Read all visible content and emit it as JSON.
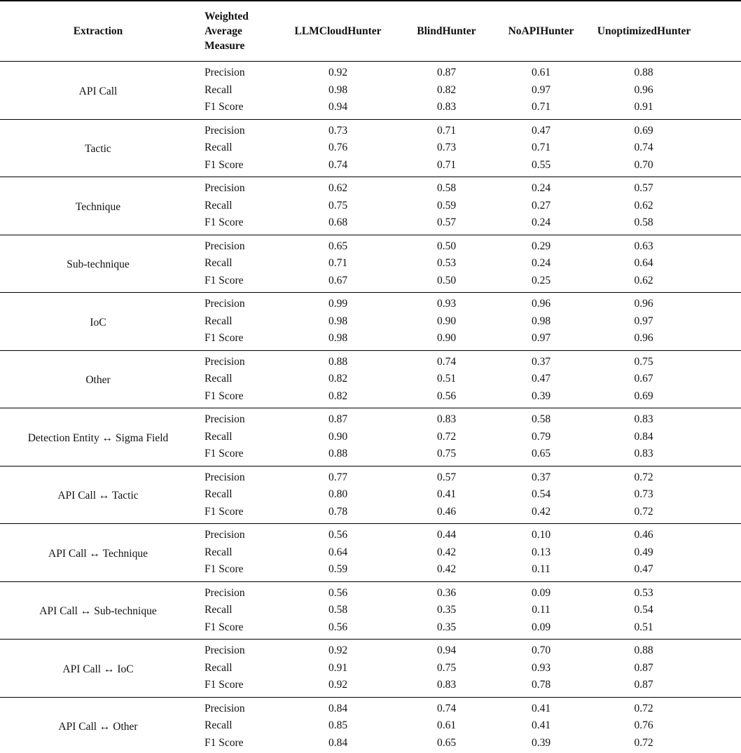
{
  "table": {
    "columns": [
      {
        "id": "extraction",
        "label": "Extraction"
      },
      {
        "id": "weighted-average-measure",
        "label": "Weighted Average Measure"
      },
      {
        "id": "llmcloudhunter",
        "label": "LLMCloudHunter"
      },
      {
        "id": "blindhunter",
        "label": "BlindHunter"
      },
      {
        "id": "noapihunter",
        "label": "NoAPIHunter"
      },
      {
        "id": "unoptimizedhunter",
        "label": "UnoptimizedHunter"
      }
    ],
    "measures": [
      "Precision",
      "Recall",
      "F1 Score"
    ],
    "groups": [
      {
        "extraction": "API Call",
        "rows": [
          [
            "0.92",
            "0.87",
            "0.61",
            "0.88"
          ],
          [
            "0.98",
            "0.82",
            "0.97",
            "0.96"
          ],
          [
            "0.94",
            "0.83",
            "0.71",
            "0.91"
          ]
        ]
      },
      {
        "extraction": "Tactic",
        "rows": [
          [
            "0.73",
            "0.71",
            "0.47",
            "0.69"
          ],
          [
            "0.76",
            "0.73",
            "0.71",
            "0.74"
          ],
          [
            "0.74",
            "0.71",
            "0.55",
            "0.70"
          ]
        ]
      },
      {
        "extraction": "Technique",
        "rows": [
          [
            "0.62",
            "0.58",
            "0.24",
            "0.57"
          ],
          [
            "0.75",
            "0.59",
            "0.27",
            "0.62"
          ],
          [
            "0.68",
            "0.57",
            "0.24",
            "0.58"
          ]
        ]
      },
      {
        "extraction": "Sub-technique",
        "rows": [
          [
            "0.65",
            "0.50",
            "0.29",
            "0.63"
          ],
          [
            "0.71",
            "0.53",
            "0.24",
            "0.64"
          ],
          [
            "0.67",
            "0.50",
            "0.25",
            "0.62"
          ]
        ]
      },
      {
        "extraction": "IoC",
        "rows": [
          [
            "0.99",
            "0.93",
            "0.96",
            "0.96"
          ],
          [
            "0.98",
            "0.90",
            "0.98",
            "0.97"
          ],
          [
            "0.98",
            "0.90",
            "0.97",
            "0.96"
          ]
        ]
      },
      {
        "extraction": "Other",
        "rows": [
          [
            "0.88",
            "0.74",
            "0.37",
            "0.75"
          ],
          [
            "0.82",
            "0.51",
            "0.47",
            "0.67"
          ],
          [
            "0.82",
            "0.56",
            "0.39",
            "0.69"
          ]
        ]
      },
      {
        "extraction": "Detection Entity ↔ Sigma Field",
        "rows": [
          [
            "0.87",
            "0.83",
            "0.58",
            "0.83"
          ],
          [
            "0.90",
            "0.72",
            "0.79",
            "0.84"
          ],
          [
            "0.88",
            "0.75",
            "0.65",
            "0.83"
          ]
        ]
      },
      {
        "extraction": "API Call ↔ Tactic",
        "rows": [
          [
            "0.77",
            "0.57",
            "0.37",
            "0.72"
          ],
          [
            "0.80",
            "0.41",
            "0.54",
            "0.73"
          ],
          [
            "0.78",
            "0.46",
            "0.42",
            "0.72"
          ]
        ]
      },
      {
        "extraction": "API Call ↔ Technique",
        "rows": [
          [
            "0.56",
            "0.44",
            "0.10",
            "0.46"
          ],
          [
            "0.64",
            "0.42",
            "0.13",
            "0.49"
          ],
          [
            "0.59",
            "0.42",
            "0.11",
            "0.47"
          ]
        ]
      },
      {
        "extraction": "API Call ↔ Sub-technique",
        "rows": [
          [
            "0.56",
            "0.36",
            "0.09",
            "0.53"
          ],
          [
            "0.58",
            "0.35",
            "0.11",
            "0.54"
          ],
          [
            "0.56",
            "0.35",
            "0.09",
            "0.51"
          ]
        ]
      },
      {
        "extraction": "API Call ↔ IoC",
        "rows": [
          [
            "0.92",
            "0.94",
            "0.70",
            "0.88"
          ],
          [
            "0.91",
            "0.75",
            "0.93",
            "0.87"
          ],
          [
            "0.92",
            "0.83",
            "0.78",
            "0.87"
          ]
        ]
      },
      {
        "extraction": "API Call ↔ Other",
        "rows": [
          [
            "0.84",
            "0.74",
            "0.41",
            "0.72"
          ],
          [
            "0.85",
            "0.61",
            "0.41",
            "0.76"
          ],
          [
            "0.84",
            "0.65",
            "0.39",
            "0.72"
          ]
        ]
      }
    ]
  }
}
